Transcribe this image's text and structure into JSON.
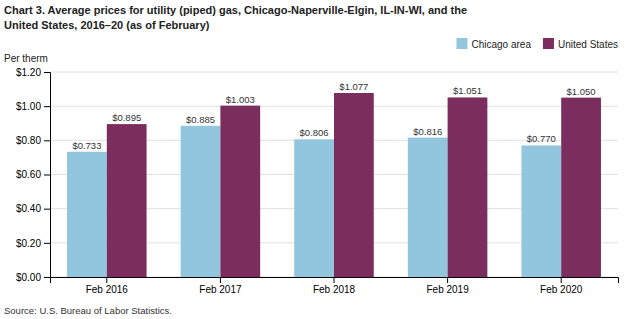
{
  "chart_data": {
    "type": "bar",
    "title": [
      "Chart 3. Average prices for utility (piped) gas, Chicago-Naperville-Elgin, IL-IN-WI, and the",
      "United States, 2016–20 (as of February)"
    ],
    "ylabel": "Per therm",
    "source": "Source: U.S. Bureau of Labor Statistics.",
    "categories": [
      "Feb 2016",
      "Feb 2017",
      "Feb 2018",
      "Feb 2019",
      "Feb 2020"
    ],
    "series": [
      {
        "name": "Chicago area",
        "color": "#92C5DE",
        "values": [
          0.733,
          0.885,
          0.806,
          0.816,
          0.77
        ],
        "value_labels": [
          "$0.733",
          "$0.885",
          "$0.806",
          "$0.816",
          "$0.770"
        ]
      },
      {
        "name": "United States",
        "color": "#7B2D5E",
        "values": [
          0.895,
          1.003,
          1.077,
          1.051,
          1.05
        ],
        "value_labels": [
          "$0.895",
          "$1.003",
          "$1.077",
          "$1.051",
          "$1.050"
        ]
      }
    ],
    "ylim": [
      0.0,
      1.2
    ],
    "yticks": [
      {
        "value": 0.0,
        "label": "$0.00"
      },
      {
        "value": 0.2,
        "label": "$0.20"
      },
      {
        "value": 0.4,
        "label": "$0.40"
      },
      {
        "value": 0.6,
        "label": "$0.60"
      },
      {
        "value": 0.8,
        "label": "$0.80"
      },
      {
        "value": 1.0,
        "label": "$1.00"
      },
      {
        "value": 1.2,
        "label": "$1.20"
      }
    ],
    "grid": true,
    "legend": "upper right",
    "data_labels": true
  }
}
